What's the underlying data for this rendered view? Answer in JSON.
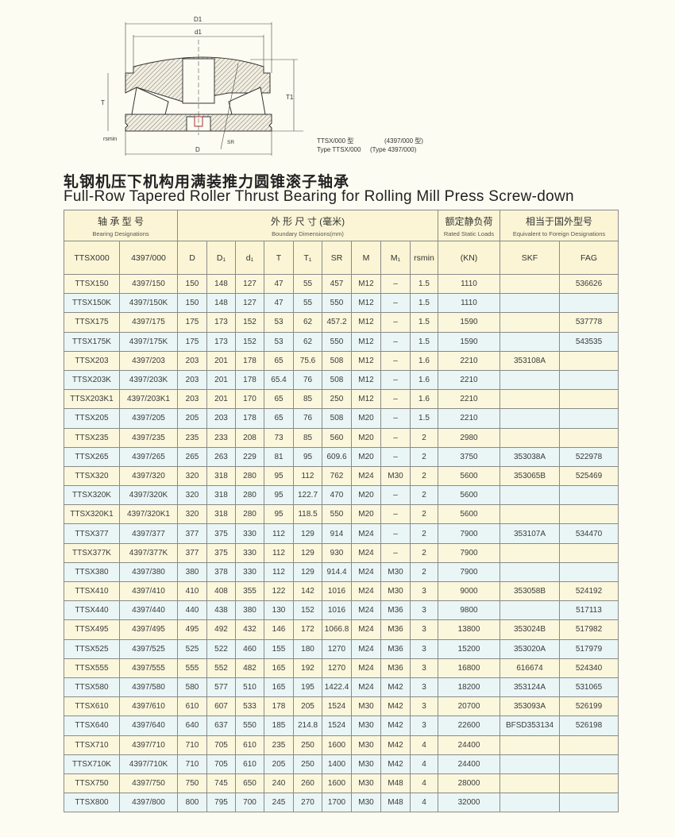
{
  "diagram": {
    "labels": {
      "D1": "D1",
      "d1": "d1",
      "T": "T",
      "T1": "T1",
      "rsmin": "rsmin",
      "SR": "SR",
      "D": "D"
    },
    "type_cn": "TTSX/000 型",
    "type_cn_alt": "(4397/000 型)",
    "type_en": "Type TTSX/000",
    "type_en_alt": "(Type 4397/000)"
  },
  "title_cn": "轧钢机压下机构用满装推力圆锥滚子轴承",
  "title_en": "Full-Row Tapered Roller Thrust Bearing for Rolling Mill Press Screw-down",
  "table": {
    "group_headers": [
      {
        "cn": "轴 承 型 号",
        "en": "Bearing Designations"
      },
      {
        "cn": "外 形 尺 寸 (毫米)",
        "en": "Boundary Dimensions(mm)"
      },
      {
        "cn": "额定静负荷",
        "en": "Rated Static Loads"
      },
      {
        "cn": "相当于国外型号",
        "en": "Equivalent to Foreign Designations"
      }
    ],
    "columns": [
      "TTSX000",
      "4397/000",
      "D",
      "D₁",
      "d₁",
      "T",
      "T₁",
      "SR",
      "M",
      "M₁",
      "rsmin",
      "(KN)",
      "SKF",
      "FAG"
    ],
    "rows": [
      [
        "TTSX150",
        "4397/150",
        "150",
        "148",
        "127",
        "47",
        "55",
        "457",
        "M12",
        "–",
        "1.5",
        "1110",
        "",
        "536626"
      ],
      [
        "TTSX150K",
        "4397/150K",
        "150",
        "148",
        "127",
        "47",
        "55",
        "550",
        "M12",
        "–",
        "1.5",
        "1110",
        "",
        ""
      ],
      [
        "TTSX175",
        "4397/175",
        "175",
        "173",
        "152",
        "53",
        "62",
        "457.2",
        "M12",
        "–",
        "1.5",
        "1590",
        "",
        "537778"
      ],
      [
        "TTSX175K",
        "4397/175K",
        "175",
        "173",
        "152",
        "53",
        "62",
        "550",
        "M12",
        "–",
        "1.5",
        "1590",
        "",
        "543535"
      ],
      [
        "TTSX203",
        "4397/203",
        "203",
        "201",
        "178",
        "65",
        "75.6",
        "508",
        "M12",
        "–",
        "1.6",
        "2210",
        "353108A",
        ""
      ],
      [
        "TTSX203K",
        "4397/203K",
        "203",
        "201",
        "178",
        "65.4",
        "76",
        "508",
        "M12",
        "–",
        "1.6",
        "2210",
        "",
        ""
      ],
      [
        "TTSX203K1",
        "4397/203K1",
        "203",
        "201",
        "170",
        "65",
        "85",
        "250",
        "M12",
        "–",
        "1.6",
        "2210",
        "",
        ""
      ],
      [
        "TTSX205",
        "4397/205",
        "205",
        "203",
        "178",
        "65",
        "76",
        "508",
        "M20",
        "–",
        "1.5",
        "2210",
        "",
        ""
      ],
      [
        "TTSX235",
        "4397/235",
        "235",
        "233",
        "208",
        "73",
        "85",
        "560",
        "M20",
        "–",
        "2",
        "2980",
        "",
        ""
      ],
      [
        "TTSX265",
        "4397/265",
        "265",
        "263",
        "229",
        "81",
        "95",
        "609.6",
        "M20",
        "–",
        "2",
        "3750",
        "353038A",
        "522978"
      ],
      [
        "TTSX320",
        "4397/320",
        "320",
        "318",
        "280",
        "95",
        "112",
        "762",
        "M24",
        "M30",
        "2",
        "5600",
        "353065B",
        "525469"
      ],
      [
        "TTSX320K",
        "4397/320K",
        "320",
        "318",
        "280",
        "95",
        "122.7",
        "470",
        "M20",
        "–",
        "2",
        "5600",
        "",
        ""
      ],
      [
        "TTSX320K1",
        "4397/320K1",
        "320",
        "318",
        "280",
        "95",
        "118.5",
        "550",
        "M20",
        "–",
        "2",
        "5600",
        "",
        ""
      ],
      [
        "TTSX377",
        "4397/377",
        "377",
        "375",
        "330",
        "112",
        "129",
        "914",
        "M24",
        "–",
        "2",
        "7900",
        "353107A",
        "534470"
      ],
      [
        "TTSX377K",
        "4397/377K",
        "377",
        "375",
        "330",
        "112",
        "129",
        "930",
        "M24",
        "–",
        "2",
        "7900",
        "",
        ""
      ],
      [
        "TTSX380",
        "4397/380",
        "380",
        "378",
        "330",
        "112",
        "129",
        "914.4",
        "M24",
        "M30",
        "2",
        "7900",
        "",
        ""
      ],
      [
        "TTSX410",
        "4397/410",
        "410",
        "408",
        "355",
        "122",
        "142",
        "1016",
        "M24",
        "M30",
        "3",
        "9000",
        "353058B",
        "524192"
      ],
      [
        "TTSX440",
        "4397/440",
        "440",
        "438",
        "380",
        "130",
        "152",
        "1016",
        "M24",
        "M36",
        "3",
        "9800",
        "",
        "517113"
      ],
      [
        "TTSX495",
        "4397/495",
        "495",
        "492",
        "432",
        "146",
        "172",
        "1066.8",
        "M24",
        "M36",
        "3",
        "13800",
        "353024B",
        "517982"
      ],
      [
        "TTSX525",
        "4397/525",
        "525",
        "522",
        "460",
        "155",
        "180",
        "1270",
        "M24",
        "M36",
        "3",
        "15200",
        "353020A",
        "517979"
      ],
      [
        "TTSX555",
        "4397/555",
        "555",
        "552",
        "482",
        "165",
        "192",
        "1270",
        "M24",
        "M36",
        "3",
        "16800",
        "616674",
        "524340"
      ],
      [
        "TTSX580",
        "4397/580",
        "580",
        "577",
        "510",
        "165",
        "195",
        "1422.4",
        "M24",
        "M42",
        "3",
        "18200",
        "353124A",
        "531065"
      ],
      [
        "TTSX610",
        "4397/610",
        "610",
        "607",
        "533",
        "178",
        "205",
        "1524",
        "M30",
        "M42",
        "3",
        "20700",
        "353093A",
        "526199"
      ],
      [
        "TTSX640",
        "4397/640",
        "640",
        "637",
        "550",
        "185",
        "214.8",
        "1524",
        "M30",
        "M42",
        "3",
        "22600",
        "BFSD353134",
        "526198"
      ],
      [
        "TTSX710",
        "4397/710",
        "710",
        "705",
        "610",
        "235",
        "250",
        "1600",
        "M30",
        "M42",
        "4",
        "24400",
        "",
        ""
      ],
      [
        "TTSX710K",
        "4397/710K",
        "710",
        "705",
        "610",
        "205",
        "250",
        "1400",
        "M30",
        "M42",
        "4",
        "24400",
        "",
        ""
      ],
      [
        "TTSX750",
        "4397/750",
        "750",
        "745",
        "650",
        "240",
        "260",
        "1600",
        "M30",
        "M48",
        "4",
        "28000",
        "",
        ""
      ],
      [
        "TTSX800",
        "4397/800",
        "800",
        "795",
        "700",
        "245",
        "270",
        "1700",
        "M30",
        "M48",
        "4",
        "32000",
        "",
        ""
      ]
    ]
  },
  "colors": {
    "row_yellow": "#fbf7dc",
    "row_blue": "#eaf6f6",
    "header_bg": "#fbf5d5"
  }
}
